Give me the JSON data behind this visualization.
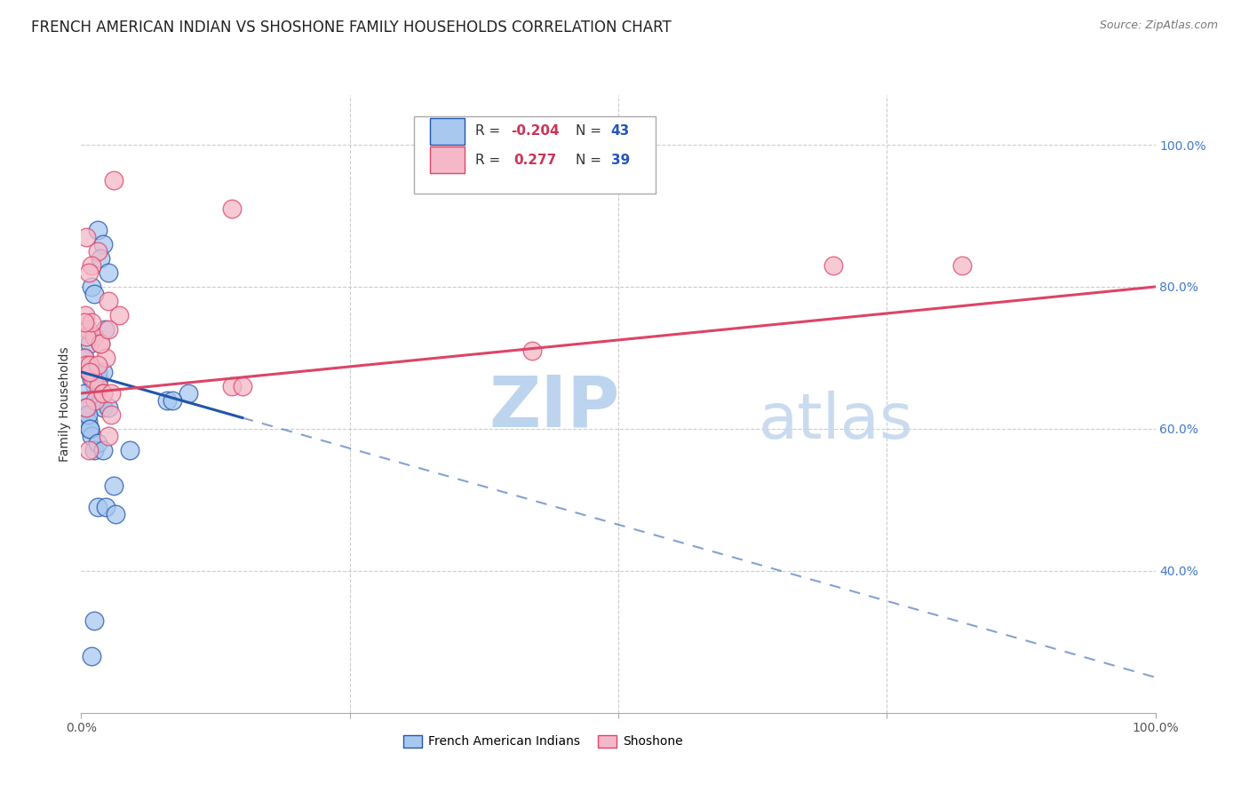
{
  "title": "FRENCH AMERICAN INDIAN VS SHOSHONE FAMILY HOUSEHOLDS CORRELATION CHART",
  "source": "Source: ZipAtlas.com",
  "ylabel": "Family Households",
  "blue_color": "#A8C8F0",
  "pink_color": "#F5B8C8",
  "blue_line_color": "#2255AA",
  "pink_line_color": "#DD4466",
  "blue_scatter_x": [
    1.5,
    2.0,
    1.8,
    2.5,
    1.0,
    1.2,
    2.2,
    0.5,
    0.8,
    0.3,
    0.5,
    0.7,
    1.0,
    1.3,
    1.5,
    1.8,
    2.0,
    0.4,
    0.6,
    0.8,
    1.0,
    1.2,
    1.4,
    1.6,
    0.3,
    0.5,
    0.6,
    0.8,
    1.5,
    2.0,
    10.0,
    8.0,
    8.5,
    1.5,
    2.0,
    2.5,
    3.0,
    4.5,
    1.5,
    2.3,
    3.2,
    1.2,
    1.0
  ],
  "blue_scatter_y": [
    88,
    86,
    84,
    82,
    80,
    79,
    74,
    73,
    72,
    70,
    69,
    68,
    67,
    66,
    65,
    64,
    63,
    62,
    61,
    60,
    59,
    57,
    68,
    67,
    65,
    63,
    62,
    60,
    68,
    68,
    65,
    64,
    64,
    58,
    57,
    63,
    52,
    57,
    49,
    49,
    48,
    33,
    28
  ],
  "pink_scatter_x": [
    3.0,
    0.5,
    1.5,
    14.0,
    1.0,
    2.5,
    0.7,
    0.4,
    0.6,
    1.2,
    1.8,
    2.3,
    0.3,
    0.5,
    0.8,
    1.1,
    1.6,
    2.0,
    1.3,
    1.8,
    2.8,
    3.5,
    0.5,
    0.8,
    42.0,
    70.0,
    82.0,
    14.0,
    15.0,
    2.0,
    2.5,
    1.5,
    2.5,
    0.8,
    1.0,
    0.3,
    0.5,
    0.7,
    2.8
  ],
  "pink_scatter_y": [
    95,
    87,
    85,
    91,
    83,
    78,
    82,
    76,
    74,
    73,
    72,
    70,
    70,
    69,
    68,
    67,
    66,
    65,
    64,
    72,
    62,
    76,
    73,
    69,
    71,
    83,
    83,
    66,
    66,
    65,
    59,
    69,
    74,
    68,
    75,
    75,
    63,
    57,
    65
  ],
  "blue_line_start_x": 0,
  "blue_line_end_solid_x": 15,
  "blue_line_end_x": 100,
  "blue_line_start_y": 68,
  "blue_line_end_y": 25,
  "pink_line_start_x": 0,
  "pink_line_end_x": 100,
  "pink_line_start_y": 65,
  "pink_line_end_y": 80,
  "xlim": [
    0,
    100
  ],
  "ylim": [
    20,
    107
  ],
  "yticks": [
    40,
    60,
    80,
    100
  ],
  "ytick_labels_right": [
    "40.0%",
    "60.0%",
    "80.0%",
    "100.0%"
  ],
  "xtick_labels": [
    "0.0%",
    "",
    "",
    "",
    "100.0%"
  ],
  "grid_color": "#CCCCCC",
  "background_color": "#FFFFFF",
  "watermark_zip_color": "#BDD4EE",
  "watermark_atlas_color": "#C5D8EE",
  "title_fontsize": 12,
  "legend_r_color": "#CC3355",
  "legend_n_color": "#2255BB",
  "legend_blue_r": "R = -0.204",
  "legend_blue_n": "N = 43",
  "legend_pink_r": "R =  0.277",
  "legend_pink_n": "N = 39",
  "tick_label_color_right": "#4477CC"
}
